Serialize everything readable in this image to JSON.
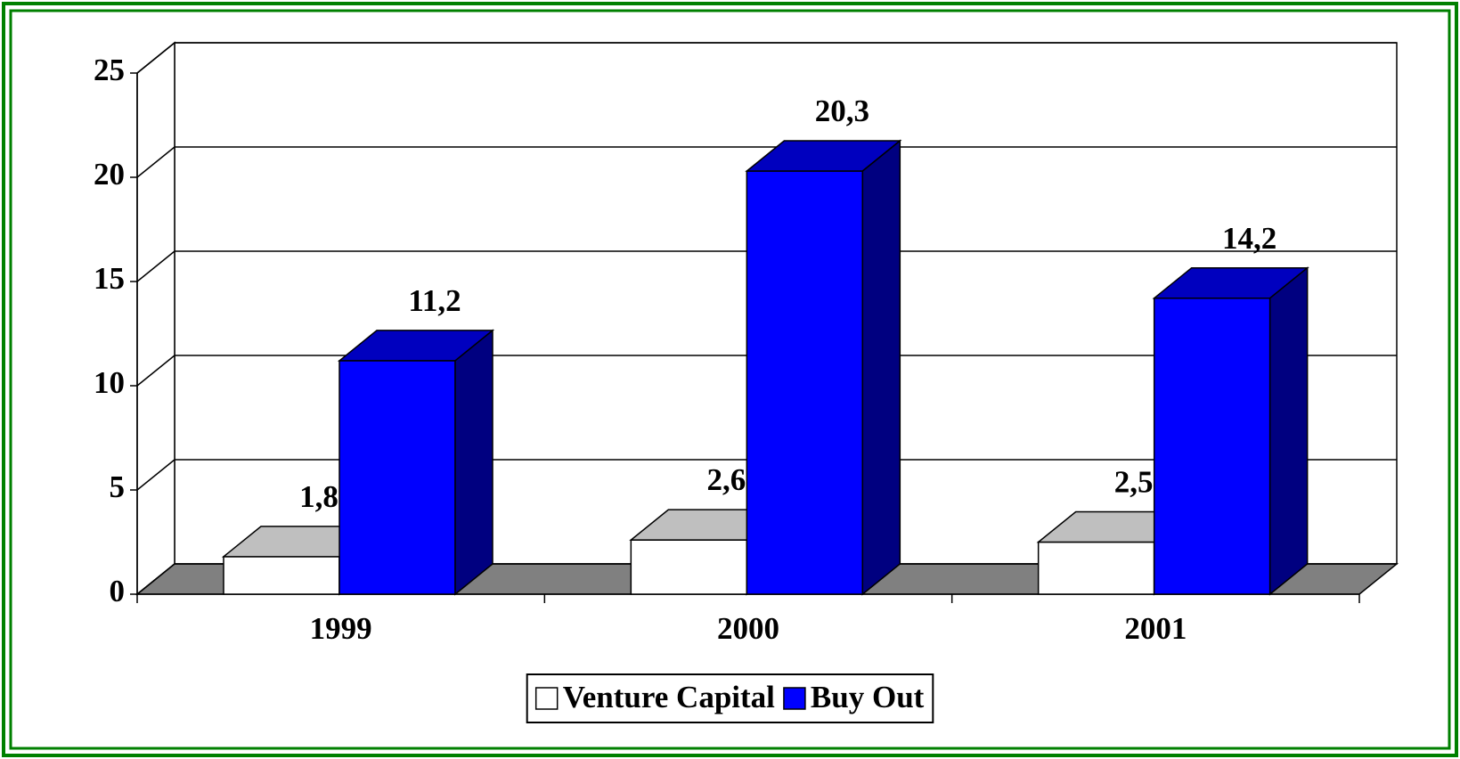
{
  "chart_data": {
    "type": "bar3d",
    "categories": [
      "1999",
      "2000",
      "2001"
    ],
    "series": [
      {
        "name": "Venture Capital",
        "color": "#ffffff",
        "values": [
          1.8,
          2.6,
          2.5
        ],
        "value_labels": [
          "1,8",
          "2,6",
          "2,5"
        ]
      },
      {
        "name": "Buy Out",
        "color": "#0000ff",
        "values": [
          11.2,
          20.3,
          14.2
        ],
        "value_labels": [
          "11,2",
          "20,3",
          "14,2"
        ]
      }
    ],
    "ylim": [
      0,
      25
    ],
    "yticks": [
      0,
      5,
      10,
      15,
      20,
      25
    ],
    "grid": true,
    "legend": "bottom"
  }
}
